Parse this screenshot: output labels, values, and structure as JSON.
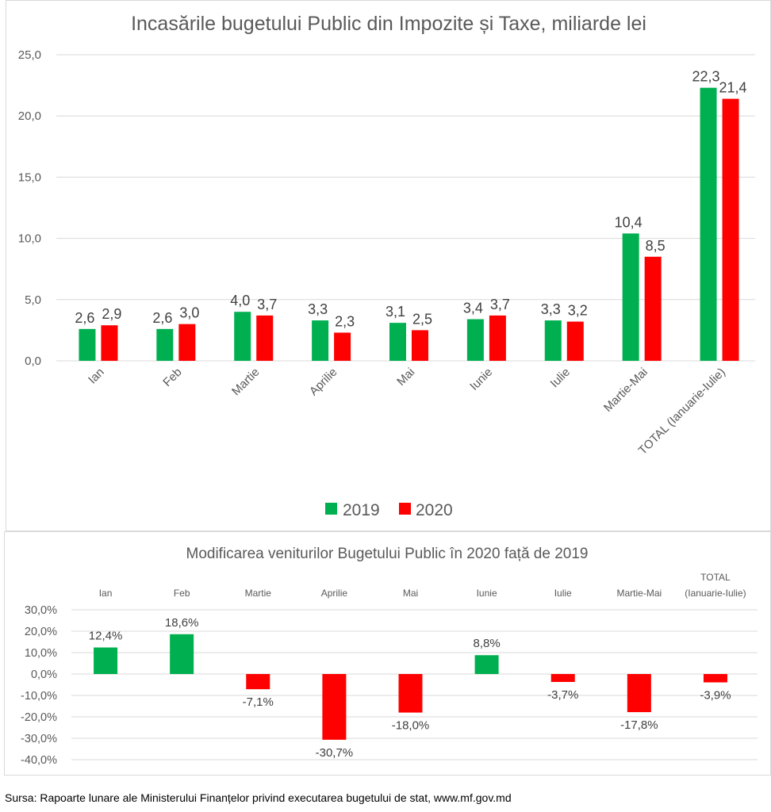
{
  "chart_data": [
    {
      "type": "bar",
      "title": "Incasările bugetului Public din Impozite și Taxe, miliarde lei",
      "xlabel": "",
      "ylabel": "",
      "ylim": [
        0,
        25
      ],
      "yticks": [
        "0,0",
        "5,0",
        "10,0",
        "15,0",
        "20,0",
        "25,0"
      ],
      "ytick_values": [
        0,
        5,
        10,
        15,
        20,
        25
      ],
      "grid": true,
      "legend_position": "bottom",
      "categories": [
        "Ian",
        "Feb",
        "Martie",
        "Aprilie",
        "Mai",
        "Iunie",
        "Iulie",
        "Martie-Mai",
        "TOTAL (Ianuarie-Iulie)"
      ],
      "series": [
        {
          "name": "2019",
          "color": "#00b050",
          "values": [
            2.6,
            2.6,
            4.0,
            3.3,
            3.1,
            3.4,
            3.3,
            10.4,
            22.3
          ],
          "labels": [
            "2,6",
            "2,6",
            "4,0",
            "3,3",
            "3,1",
            "3,4",
            "3,3",
            "10,4",
            "22,3"
          ]
        },
        {
          "name": "2020",
          "color": "#ff0000",
          "values": [
            2.9,
            3.0,
            3.7,
            2.3,
            2.5,
            3.7,
            3.2,
            8.5,
            21.4
          ],
          "labels": [
            "2,9",
            "3,0",
            "3,7",
            "2,3",
            "2,5",
            "3,7",
            "3,2",
            "8,5",
            "21,4"
          ]
        }
      ]
    },
    {
      "type": "bar",
      "title": "Modificarea  veniturilor Bugetului Public în 2020 față de 2019",
      "xlabel": "",
      "ylabel": "",
      "ylim": [
        -40,
        30
      ],
      "yticks": [
        "30,0%",
        "20,0%",
        "10,0%",
        "0,0%",
        "-10,0%",
        "-20,0%",
        "-30,0%",
        "-40,0%"
      ],
      "ytick_values": [
        30,
        20,
        10,
        0,
        -10,
        -20,
        -30,
        -40
      ],
      "grid": true,
      "legend_position": "none",
      "categories": [
        "Ian",
        "Feb",
        "Martie",
        "Aprilie",
        "Mai",
        "Iunie",
        "Iulie",
        "Martie-Mai",
        "TOTAL (Ianuarie-Iulie)"
      ],
      "category_lines": [
        [
          "Ian"
        ],
        [
          "Feb"
        ],
        [
          "Martie"
        ],
        [
          "Aprilie"
        ],
        [
          "Mai"
        ],
        [
          "Iunie"
        ],
        [
          "Iulie"
        ],
        [
          "Martie-Mai"
        ],
        [
          "TOTAL",
          "(Ianuarie-Iulie)"
        ]
      ],
      "positive_color": "#00b050",
      "negative_color": "#ff0000",
      "values": [
        12.4,
        18.6,
        -7.1,
        -30.7,
        -18.0,
        8.8,
        -3.7,
        -17.8,
        -3.9
      ],
      "labels": [
        "12,4%",
        "18,6%",
        "-7,1%",
        "-30,7%",
        "-18,0%",
        "8,8%",
        "-3,7%",
        "-17,8%",
        "-3,9%"
      ]
    }
  ],
  "footer": {
    "source": "Sursa: Rapoarte lunare ale Ministerului Finanțelor privind executarea bugetului de stat, www.mf.gov.md"
  }
}
